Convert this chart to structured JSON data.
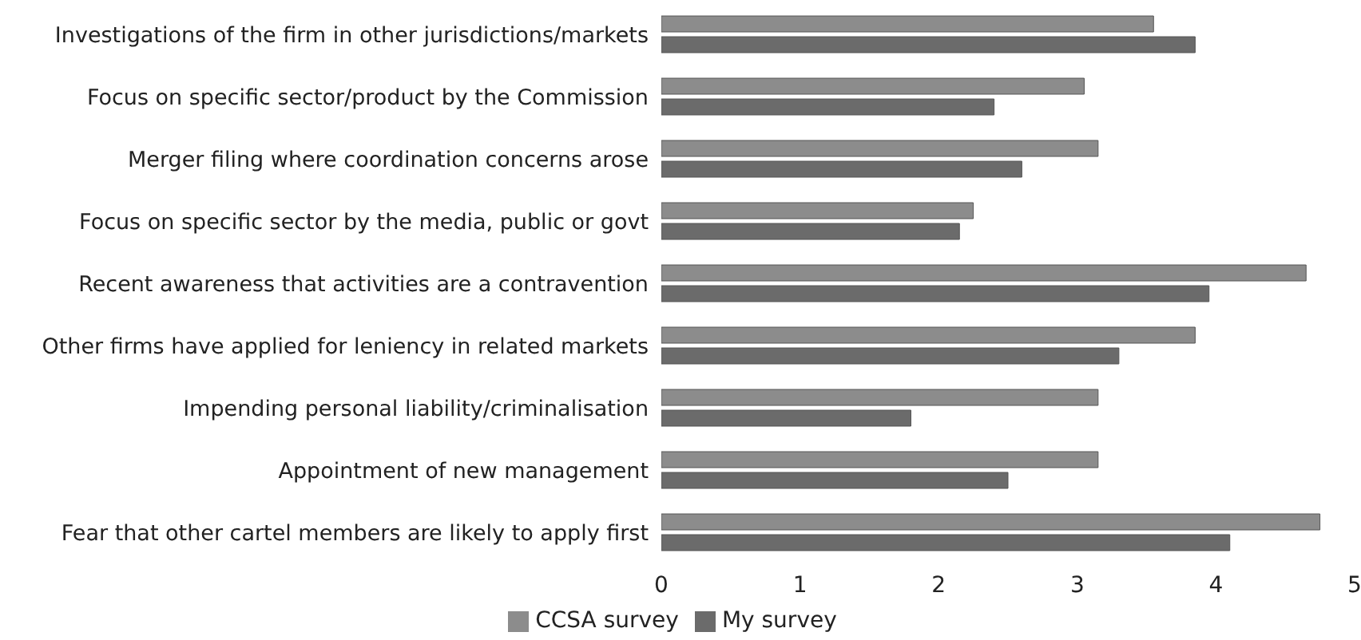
{
  "chart_data": {
    "type": "bar",
    "orientation": "horizontal",
    "categories": [
      "Investigations of the firm in other jurisdictions/markets",
      "Focus on specific sector/product by the Commission",
      "Merger filing where coordination concerns arose",
      "Focus on specific sector by the media, public or govt",
      "Recent awareness that activities are a contravention",
      "Other firms have applied for leniency in related markets",
      "Impending personal liability/criminalisation",
      "Appointment of new management",
      "Fear that other cartel members are likely to apply first"
    ],
    "series": [
      {
        "name": "CCSA survey",
        "color": "#8c8c8c",
        "values": [
          3.55,
          3.05,
          3.15,
          2.25,
          4.65,
          3.85,
          3.15,
          3.15,
          4.75
        ]
      },
      {
        "name": "My survey",
        "color": "#6b6b6b",
        "values": [
          3.85,
          2.4,
          2.6,
          2.15,
          3.95,
          3.3,
          1.8,
          2.5,
          4.1
        ]
      }
    ],
    "xlim": [
      0,
      5
    ],
    "xticks": [
      0,
      1,
      2,
      3,
      4,
      5
    ],
    "grid": false,
    "legend": "bottom"
  }
}
